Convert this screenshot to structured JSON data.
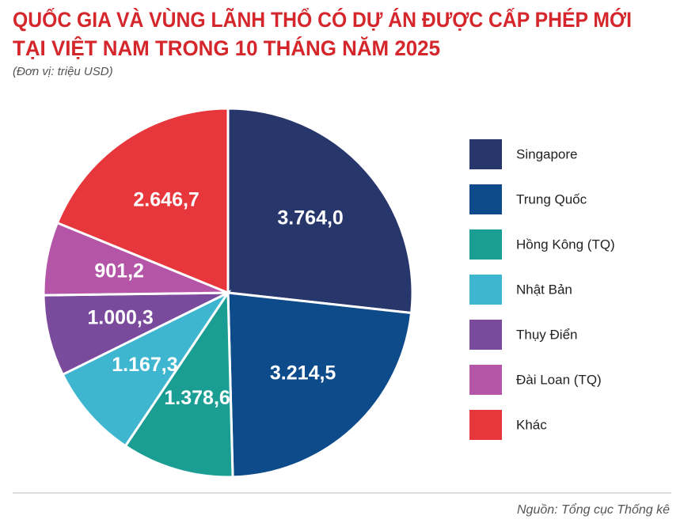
{
  "chart_data": {
    "type": "pie",
    "title": [
      "QUỐC GIA VÀ VÙNG LÃNH THỔ CÓ DỰ ÁN ĐƯỢC CẤP PHÉP MỚI",
      "TẠI VIỆT NAM TRONG 10 THÁNG NĂM 2025"
    ],
    "subtitle": "(Đơn vị: triệu USD)",
    "categories": [
      "Singapore",
      "Trung Quốc",
      "Hồng Kông (TQ)",
      "Nhật Bản",
      "Thụy Điển",
      "Đài Loan (TQ)",
      "Khác"
    ],
    "values": [
      3764.0,
      3214.5,
      1378.6,
      1167.3,
      1000.3,
      901.2,
      2646.7
    ],
    "value_labels": [
      "3.764,0",
      "3.214,5",
      "1.378,6",
      "1.167,3",
      "1.000,3",
      "901,2",
      "2.646,7"
    ],
    "colors": [
      "#27376b",
      "#0e4b8b",
      "#1a9d93",
      "#3eb6cf",
      "#7a4b9c",
      "#b455a7",
      "#e8373c"
    ],
    "legend": "right",
    "source": "Nguồn: Tổng cục Thống kê"
  }
}
